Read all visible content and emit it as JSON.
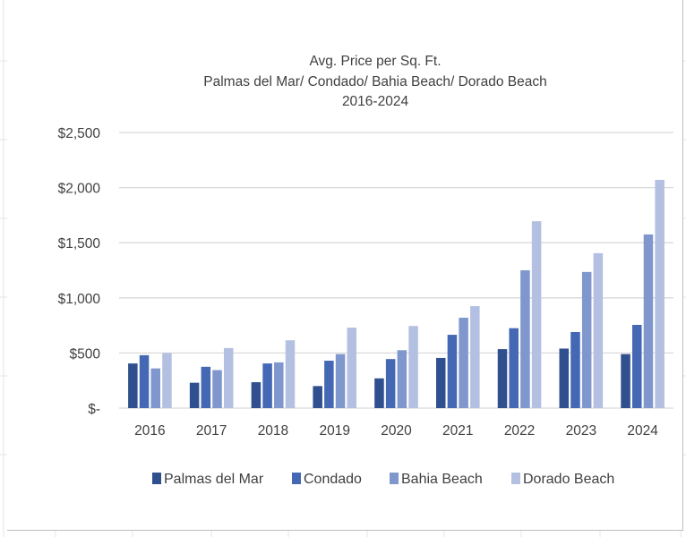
{
  "chart_data": {
    "type": "bar",
    "title": [
      "Avg. Price per Sq. Ft.",
      "Palmas del Mar/ Condado/ Bahia Beach/ Dorado Beach",
      "2016-2024"
    ],
    "categories": [
      "2016",
      "2017",
      "2018",
      "2019",
      "2020",
      "2021",
      "2022",
      "2023",
      "2024"
    ],
    "series": [
      {
        "name": "Palmas del Mar",
        "color": "#2f4f8f",
        "values": [
          405,
          230,
          235,
          200,
          270,
          455,
          535,
          540,
          490
        ]
      },
      {
        "name": "Condado",
        "color": "#4568b4",
        "values": [
          480,
          375,
          405,
          430,
          445,
          665,
          725,
          690,
          755
        ]
      },
      {
        "name": "Bahia Beach",
        "color": "#7f97cd",
        "values": [
          360,
          345,
          415,
          490,
          525,
          820,
          1250,
          1235,
          1575
        ]
      },
      {
        "name": "Dorado Beach",
        "color": "#b3c0e2",
        "values": [
          500,
          545,
          615,
          730,
          745,
          925,
          1695,
          1405,
          2070
        ]
      }
    ],
    "y_ticks": [
      {
        "value": 0,
        "label": "$-"
      },
      {
        "value": 500,
        "label": "$500"
      },
      {
        "value": 1000,
        "label": "$1,000"
      },
      {
        "value": 1500,
        "label": "$1,500"
      },
      {
        "value": 2000,
        "label": "$2,000"
      },
      {
        "value": 2500,
        "label": "$2,500"
      }
    ],
    "ylim": [
      0,
      2500
    ],
    "grid": true,
    "legend_position": "bottom",
    "colors": {
      "gridline": "#d9d9d9",
      "text": "#404040"
    }
  }
}
